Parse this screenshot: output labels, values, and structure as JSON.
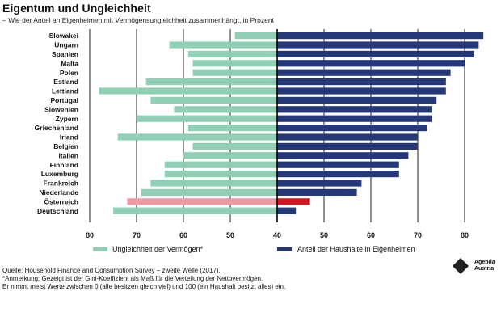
{
  "title": "Eigentum und Ungleichheit",
  "subtitle": "– Wie der Anteil an Eigenheimen mit Vermögensungleichheit zusammenhängt, in Prozent",
  "colors": {
    "gini": "#8fcfb3",
    "homeownership": "#243779",
    "gini_highlight": "#ef9aa2",
    "homeownership_highlight": "#d11920"
  },
  "chart_data": {
    "type": "bar",
    "orientation": "diverging-horizontal",
    "categories": [
      "Slowakei",
      "Ungarn",
      "Spanien",
      "Malta",
      "Polen",
      "Estland",
      "Lettland",
      "Portugal",
      "Slowenien",
      "Zypern",
      "Griechenland",
      "Irland",
      "Belgien",
      "Italien",
      "Finnland",
      "Luxemburg",
      "Frankreich",
      "Niederlande",
      "Österreich",
      "Deutschland"
    ],
    "highlight": "Österreich",
    "series": [
      {
        "name": "Ungleichheit der Vermögen*",
        "side": "left",
        "values": [
          49,
          63,
          59,
          58,
          58,
          68,
          78,
          67,
          62,
          70,
          59,
          74,
          58,
          60,
          64,
          64,
          67,
          69,
          72,
          75
        ]
      },
      {
        "name": "Anteil der Haushalte in Eigenheimen",
        "side": "right",
        "values": [
          84,
          83,
          82,
          80,
          77,
          76,
          76,
          74,
          73,
          73,
          72,
          70,
          70,
          68,
          66,
          66,
          58,
          57,
          47,
          44
        ]
      }
    ],
    "xaxis_ticks": [
      "80",
      "70",
      "60",
      "50",
      "40",
      "50",
      "60",
      "70",
      "80"
    ],
    "axis_center": 40,
    "grid": true,
    "legend_position": "bottom"
  },
  "footnote": {
    "source": "Quelle: Household Finance and Consumption Survey – zweite Welle (2017).",
    "note1": "*Anmerkung: Gezeigt ist der Gini-Koeffizient als Maß für die Verteilung der Nettovermögen.",
    "note2": "Er nimmt meist Werte zwischen 0 (alle besitzen gleich viel) und 100 (ein Haushalt besitzt alles) ein."
  },
  "logo": {
    "line1": "Agenda",
    "line2": "Austria",
    "icon": "diamond-logo-icon"
  }
}
